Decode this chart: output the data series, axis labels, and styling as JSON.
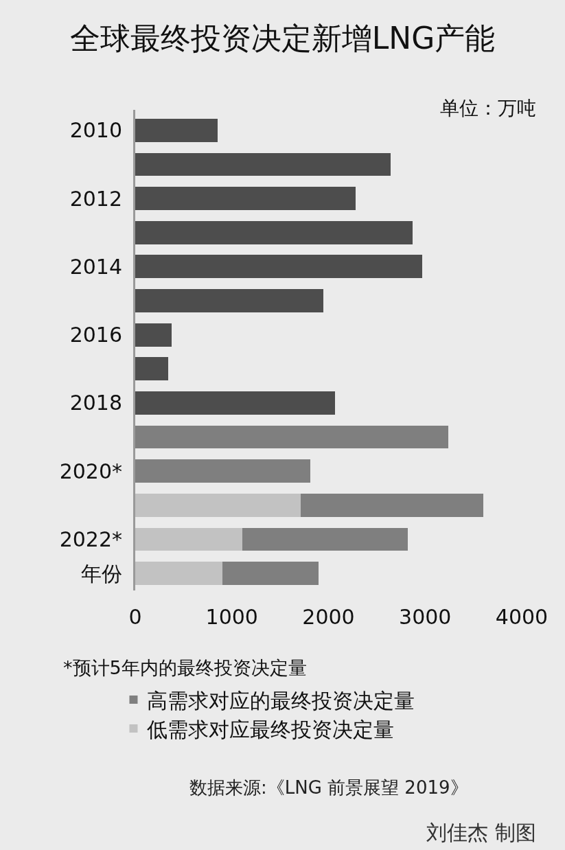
{
  "chart_data": {
    "type": "bar",
    "orientation": "horizontal",
    "stacked": true,
    "title": "全球最终投资决定新增LNG产能",
    "categories": [
      "2010",
      null,
      "2012",
      null,
      "2014",
      null,
      "2016",
      null,
      "2018",
      null,
      "2020*",
      null,
      "2022*",
      "年份"
    ],
    "series": [
      {
        "color": "#4d4d4d",
        "values": [
          850,
          2640,
          2280,
          2870,
          2970,
          1950,
          380,
          340,
          2070,
          null,
          null,
          null,
          null,
          null
        ]
      },
      {
        "name": "低需求对应最终投资决定量",
        "color": "#c2c2c2",
        "values": [
          null,
          null,
          null,
          null,
          null,
          null,
          null,
          null,
          null,
          null,
          null,
          1710,
          1110,
          900
        ]
      },
      {
        "name": "高需求对应的最终投资决定量",
        "color": "#7f7f7f",
        "values": [
          null,
          null,
          null,
          null,
          null,
          null,
          null,
          null,
          null,
          3240,
          1810,
          1890,
          1710,
          1000
        ]
      }
    ],
    "xlim": [
      0,
      4000
    ],
    "xticks": [
      0,
      1000,
      2000,
      3000,
      4000
    ],
    "grid": false,
    "legend": "bottom",
    "annotations": [
      "单位：万吨",
      "*预计5年内的最终投资决定量",
      "数据来源:《LNG 前景展望 2019》",
      "刘佳杰 制图"
    ]
  }
}
